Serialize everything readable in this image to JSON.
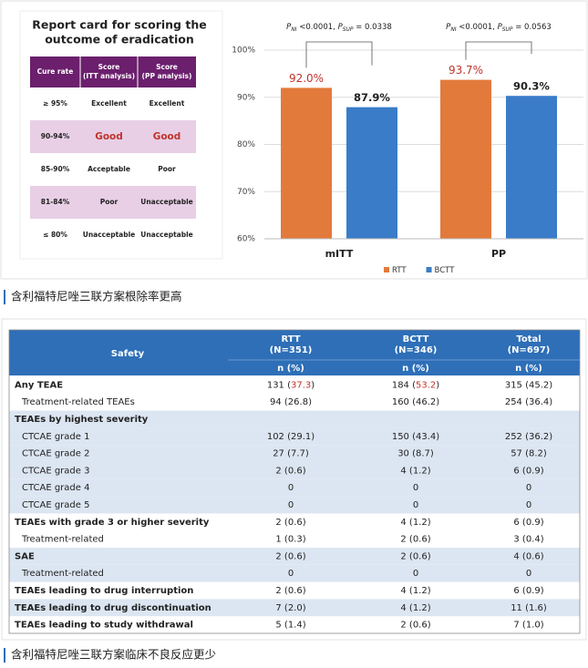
{
  "chart_data": {
    "type": "bar",
    "categories": [
      "mITT",
      "PP"
    ],
    "series": [
      {
        "name": "RTT",
        "color": "#e27a3b",
        "label_color": "#c0332b",
        "values": [
          92.0,
          93.7
        ],
        "value_labels": [
          "92.0%",
          "93.7%"
        ]
      },
      {
        "name": "BCTT",
        "color": "#3a7cc8",
        "label_color": "#222222",
        "values": [
          87.9,
          90.3
        ],
        "value_labels": [
          "87.9%",
          "90.3%"
        ]
      }
    ],
    "ylim": [
      60,
      100
    ],
    "yticks": [
      {
        "value": 60,
        "label": "60%"
      },
      {
        "value": 70,
        "label": "70%"
      },
      {
        "value": 80,
        "label": "80%"
      },
      {
        "value": 90,
        "label": "90%"
      },
      {
        "value": 100,
        "label": "100%"
      }
    ],
    "grid": true,
    "legend": "bottom",
    "annotations": [
      {
        "parts": [
          "P",
          "NI",
          " <0.0001, ",
          "P",
          "SUP",
          " = 0.0338"
        ]
      },
      {
        "parts": [
          "P",
          "NI",
          " <0.0001, ",
          "P",
          "SUP",
          " = 0.0563"
        ]
      }
    ]
  },
  "report_card": {
    "title": [
      "Report card for scoring the",
      "outcome of eradication"
    ],
    "headers": [
      [
        "Cure rate"
      ],
      [
        "Score",
        "(ITT analysis)"
      ],
      [
        "Score",
        "(PP analysis)"
      ]
    ],
    "rows": [
      {
        "cells": [
          "≥ 95%",
          "Excellent",
          "Excellent"
        ],
        "shaded": false,
        "emphasis": false
      },
      {
        "cells": [
          "90-94%",
          "Good",
          "Good"
        ],
        "shaded": true,
        "emphasis": true
      },
      {
        "cells": [
          "85-90%",
          "Acceptable",
          "Poor"
        ],
        "shaded": false,
        "emphasis": false
      },
      {
        "cells": [
          "81-84%",
          "Poor",
          "Unacceptable"
        ],
        "shaded": true,
        "emphasis": false
      },
      {
        "cells": [
          "≤ 80%",
          "Unacceptable",
          "Unacceptable"
        ],
        "shaded": false,
        "emphasis": false
      }
    ]
  },
  "caption_1": "含利福特尼唑三联方案根除率更高",
  "safety_table": {
    "headers": [
      [
        "Safety"
      ],
      [
        "RTT",
        "(N=351)"
      ],
      [
        "BCTT",
        "(N=346)"
      ],
      [
        "Total",
        "(N=697)"
      ]
    ],
    "subheaders": [
      "n (%)",
      "n (%)",
      "n (%)"
    ],
    "rows": [
      {
        "cells": [
          "Any TEAE",
          [
            "131 (",
            "37.3",
            ")"
          ],
          [
            "184 (",
            "53.2",
            ")"
          ],
          "315 (45.2)"
        ],
        "bold": true,
        "indent": false,
        "shaded": false
      },
      {
        "cells": [
          "Treatment-related TEAEs",
          "94 (26.8)",
          "160 (46.2)",
          "254 (36.4)"
        ],
        "bold": false,
        "indent": true,
        "shaded": false
      },
      {
        "cells": [
          "TEAEs by highest severity"
        ],
        "bold": true,
        "indent": false,
        "shaded": true
      },
      {
        "cells": [
          "CTCAE grade 1",
          "102 (29.1)",
          "150 (43.4)",
          "252 (36.2)"
        ],
        "bold": false,
        "indent": true,
        "shaded": true
      },
      {
        "cells": [
          "CTCAE grade 2",
          "27 (7.7)",
          "30 (8.7)",
          "57 (8.2)"
        ],
        "bold": false,
        "indent": true,
        "shaded": true
      },
      {
        "cells": [
          "CTCAE grade 3",
          "2 (0.6)",
          "4 (1.2)",
          "6 (0.9)"
        ],
        "bold": false,
        "indent": true,
        "shaded": true
      },
      {
        "cells": [
          "CTCAE grade 4",
          "0",
          "0",
          "0"
        ],
        "bold": false,
        "indent": true,
        "shaded": true
      },
      {
        "cells": [
          "CTCAE grade 5",
          "0",
          "0",
          "0"
        ],
        "bold": false,
        "indent": true,
        "shaded": true
      },
      {
        "cells": [
          "TEAEs with grade 3 or higher severity",
          "2 (0.6)",
          "4 (1.2)",
          "6 (0.9)"
        ],
        "bold": true,
        "indent": false,
        "shaded": false
      },
      {
        "cells": [
          "Treatment-related",
          "1 (0.3)",
          "2 (0.6)",
          "3 (0.4)"
        ],
        "bold": false,
        "indent": true,
        "shaded": false
      },
      {
        "cells": [
          "SAE",
          "2 (0.6)",
          "2 (0.6)",
          "4 (0.6)"
        ],
        "bold": true,
        "indent": false,
        "shaded": true
      },
      {
        "cells": [
          "Treatment-related",
          "0",
          "0",
          "0"
        ],
        "bold": false,
        "indent": true,
        "shaded": true
      },
      {
        "cells": [
          "TEAEs leading to drug interruption",
          "2 (0.6)",
          "4 (1.2)",
          "6 (0.9)"
        ],
        "bold": true,
        "indent": false,
        "shaded": false
      },
      {
        "cells": [
          "TEAEs leading to drug discontinuation",
          "7 (2.0)",
          "4 (1.2)",
          "11 (1.6)"
        ],
        "bold": true,
        "indent": false,
        "shaded": true
      },
      {
        "cells": [
          "TEAEs leading to study withdrawal",
          "5 (1.4)",
          "2 (0.6)",
          "7 (1.0)"
        ],
        "bold": true,
        "indent": false,
        "shaded": false
      }
    ]
  },
  "caption_2": "含利福特尼唑三联方案临床不良反应更少"
}
